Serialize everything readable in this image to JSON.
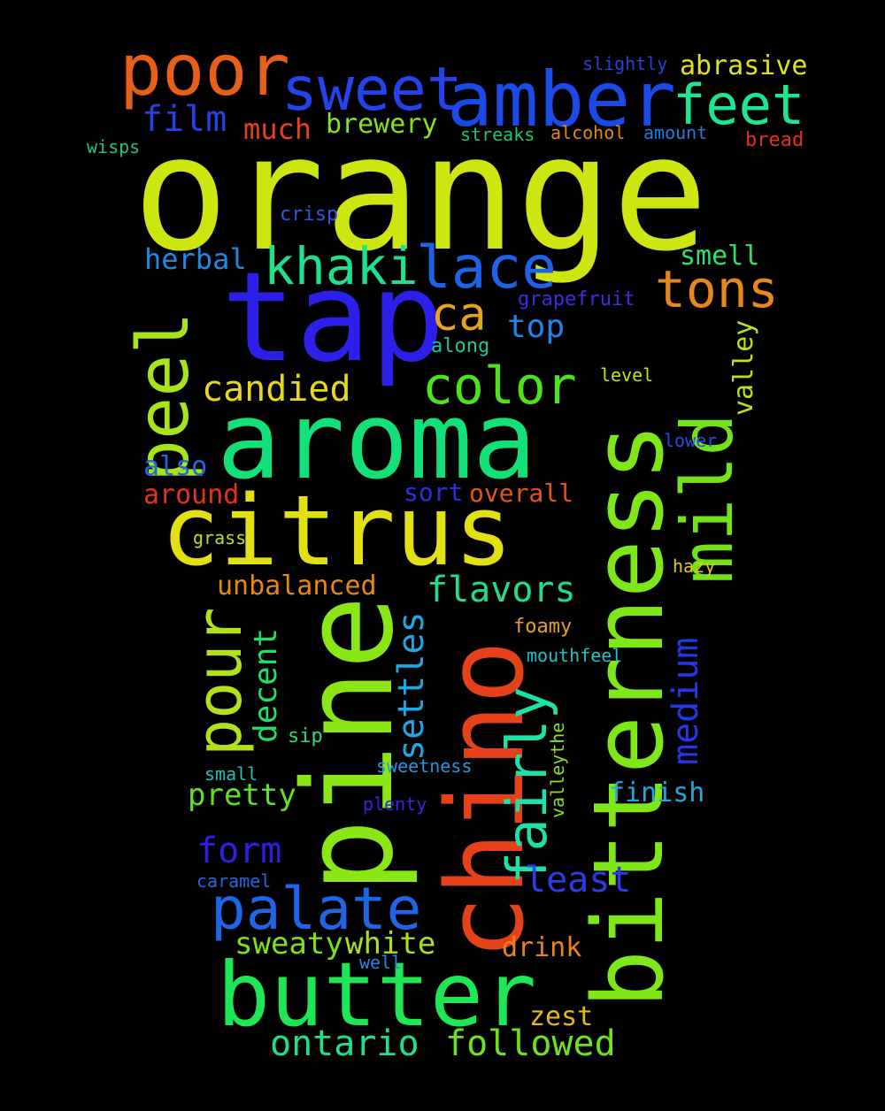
{
  "background": "#000000",
  "words": [
    {
      "text": "orange",
      "color": "#cde612"
    },
    {
      "text": "tap",
      "color": "#2c1fe8"
    },
    {
      "text": "aroma",
      "color": "#14e07a"
    },
    {
      "text": "citrus",
      "color": "#e2df13"
    },
    {
      "text": "pine",
      "color": "#8be617"
    },
    {
      "text": "chino",
      "color": "#e6421a"
    },
    {
      "text": "bitterness",
      "color": "#7fe61a"
    },
    {
      "text": "butter",
      "color": "#1fe654"
    },
    {
      "text": "amber",
      "color": "#1c4ae6"
    },
    {
      "text": "poor",
      "color": "#e6601a"
    },
    {
      "text": "sweet",
      "color": "#2543ea"
    },
    {
      "text": "feet",
      "color": "#1de590"
    },
    {
      "text": "mild",
      "color": "#72e21a"
    },
    {
      "text": "peel",
      "color": "#a7e41a"
    },
    {
      "text": "lace",
      "color": "#1e62e6"
    },
    {
      "text": "khaki",
      "color": "#1ee08e"
    },
    {
      "text": "tons",
      "color": "#e6881c"
    },
    {
      "text": "ca",
      "color": "#e6a41a"
    },
    {
      "text": "color",
      "color": "#4fe21c"
    },
    {
      "text": "candied",
      "color": "#e6d81a"
    },
    {
      "text": "pour",
      "color": "#b0e21c"
    },
    {
      "text": "palate",
      "color": "#1e66e8"
    },
    {
      "text": "fairly",
      "color": "#1de2a8"
    },
    {
      "text": "medium",
      "color": "#2436e6"
    },
    {
      "text": "settles",
      "color": "#1ea8e2"
    },
    {
      "text": "flavors",
      "color": "#1ee08a"
    },
    {
      "text": "form",
      "color": "#2f1fe6"
    },
    {
      "text": "ontario",
      "color": "#1ee08a"
    },
    {
      "text": "followed",
      "color": "#6ee21c"
    },
    {
      "text": "least",
      "color": "#2b3de6"
    },
    {
      "text": "pretty",
      "color": "#60e21e"
    },
    {
      "text": "sweaty",
      "color": "#7de21e"
    },
    {
      "text": "white",
      "color": "#a8e21e"
    },
    {
      "text": "drink",
      "color": "#e6861c"
    },
    {
      "text": "zest",
      "color": "#e6b61c"
    },
    {
      "text": "finish",
      "color": "#1ea8e2"
    },
    {
      "text": "decent",
      "color": "#1ee066"
    },
    {
      "text": "unbalanced",
      "color": "#e6861c"
    },
    {
      "text": "top",
      "color": "#1e86e6"
    },
    {
      "text": "herbal",
      "color": "#1e8ae6"
    },
    {
      "text": "smell",
      "color": "#2ee06a"
    },
    {
      "text": "valley",
      "color": "#b8e21c"
    },
    {
      "text": "film",
      "color": "#2642e6"
    },
    {
      "text": "much",
      "color": "#e6401c"
    },
    {
      "text": "brewery",
      "color": "#8ae21c"
    },
    {
      "text": "abrasive",
      "color": "#e0e21c"
    },
    {
      "text": "slightly",
      "color": "#2a40d8"
    },
    {
      "text": "streaks",
      "color": "#22c46a"
    },
    {
      "text": "alcohol",
      "color": "#e6861c"
    },
    {
      "text": "amount",
      "color": "#1e7ae6"
    },
    {
      "text": "bread",
      "color": "#e6301c"
    },
    {
      "text": "wisps",
      "color": "#1ec47a"
    },
    {
      "text": "crisp",
      "color": "#2a5ae6"
    },
    {
      "text": "grapefruit",
      "color": "#3a2ee6"
    },
    {
      "text": "along",
      "color": "#1ec4a0"
    },
    {
      "text": "level",
      "color": "#c8e21c"
    },
    {
      "text": "lower",
      "color": "#2a4ae6"
    },
    {
      "text": "also",
      "color": "#1e6ae6"
    },
    {
      "text": "around",
      "color": "#e6301c"
    },
    {
      "text": "sort",
      "color": "#2a2ee6"
    },
    {
      "text": "overall",
      "color": "#e6561c"
    },
    {
      "text": "grass",
      "color": "#b8e21c"
    },
    {
      "text": "hazy",
      "color": "#e6c81c"
    },
    {
      "text": "foamy",
      "color": "#e6a41c"
    },
    {
      "text": "mouthfeel",
      "color": "#1ec4c8"
    },
    {
      "text": "sip",
      "color": "#1ee07a"
    },
    {
      "text": "small",
      "color": "#1ec4b8"
    },
    {
      "text": "sweetness",
      "color": "#1e9ae6"
    },
    {
      "text": "plenty",
      "color": "#3a22e6"
    },
    {
      "text": "valleythe",
      "color": "#8ae21c"
    },
    {
      "text": "caramel",
      "color": "#1e6ae6"
    },
    {
      "text": "well",
      "color": "#1e8ae6"
    }
  ]
}
